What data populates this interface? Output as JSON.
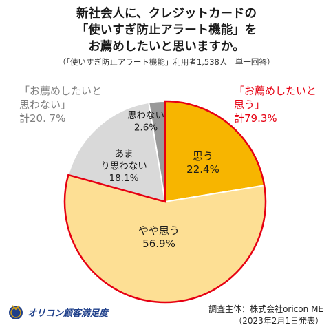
{
  "title_lines": [
    "新社会人に、クレジットカードの",
    "「使いすぎ防止アラート機能」を",
    "お薦めしたいと思いますか。"
  ],
  "subtitle": "（「使いすぎ防止アラート機能」利用者1,538人　単一回答）",
  "groups": {
    "negative": {
      "line1": "「お薦めしたいと",
      "line2": "思わない」",
      "total": "計20. 7%"
    },
    "positive": {
      "line1": "「お薦めしたいと",
      "line2": "思う」",
      "total": "計79.3%"
    }
  },
  "footer": {
    "line1": "調査主体：株式会社oricon ME",
    "line2": "（2023年2月1日発表）"
  },
  "logo": {
    "text": "オリコン顧客満足度"
  },
  "colors": {
    "positive_border": "#e60012",
    "negative_text": "#808080"
  },
  "chart_data": {
    "type": "pie",
    "slices": [
      {
        "label": "思う",
        "value": 22.4,
        "value_label": "22.4%",
        "color": "#f7b500"
      },
      {
        "label": "やや思う",
        "value": 56.9,
        "value_label": "56.9%",
        "color": "#fddf94"
      },
      {
        "label": "あまり思わない",
        "value": 18.1,
        "value_label": "18.1%",
        "color": "#d9d9d9"
      },
      {
        "label": "思わない",
        "value": 2.6,
        "value_label": "2.6%",
        "color": "#999999"
      }
    ],
    "start": "12 o'clock",
    "direction": "clockwise"
  }
}
